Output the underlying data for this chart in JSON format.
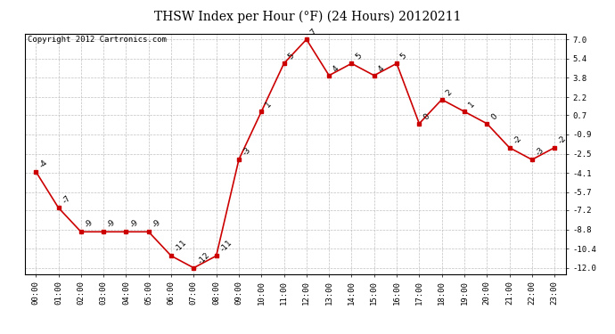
{
  "title": "THSW Index per Hour (°F) (24 Hours) 20120211",
  "copyright": "Copyright 2012 Cartronics.com",
  "hours": [
    0,
    1,
    2,
    3,
    4,
    5,
    6,
    7,
    8,
    9,
    10,
    11,
    12,
    13,
    14,
    15,
    16,
    17,
    18,
    19,
    20,
    21,
    22,
    23
  ],
  "values": [
    -4,
    -7,
    -9,
    -9,
    -9,
    -9,
    -11,
    -12,
    -11,
    -3,
    1,
    5,
    7,
    4,
    5,
    4,
    5,
    0,
    2,
    1,
    0,
    -2,
    -3,
    -2
  ],
  "xlabels": [
    "00:00",
    "01:00",
    "02:00",
    "03:00",
    "04:00",
    "05:00",
    "06:00",
    "07:00",
    "08:00",
    "09:00",
    "10:00",
    "11:00",
    "12:00",
    "13:00",
    "14:00",
    "15:00",
    "16:00",
    "17:00",
    "18:00",
    "19:00",
    "20:00",
    "21:00",
    "22:00",
    "23:00"
  ],
  "yticks": [
    7.0,
    5.4,
    3.8,
    2.2,
    0.7,
    -0.9,
    -2.5,
    -4.1,
    -5.7,
    -7.2,
    -8.8,
    -10.4,
    -12.0
  ],
  "ylim": [
    -12.5,
    7.5
  ],
  "line_color": "#cc0000",
  "marker_color": "#cc0000",
  "bg_color": "#ffffff",
  "grid_color": "#c0c0c0",
  "title_fontsize": 10,
  "copyright_fontsize": 6.5,
  "label_fontsize": 6.5,
  "annotation_fontsize": 6.5
}
